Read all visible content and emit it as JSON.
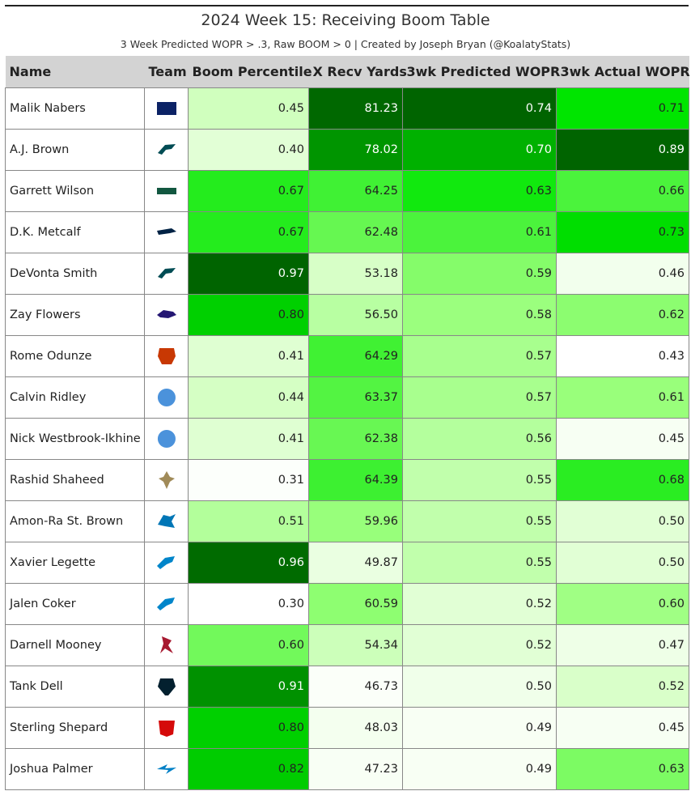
{
  "title": "2024 Week 15: Receiving Boom Table",
  "subtitle": "3 Week Predicted WOPR > .3, Raw BOOM > 0 | Created by Joseph Bryan (@KoalatyStats)",
  "columns": [
    "Name",
    "Team",
    "Boom Percentile",
    "X Recv Yards",
    "3wk Predicted WOPR",
    "3wk Actual WOPR"
  ],
  "rows": [
    {
      "name": "Malik Nabers",
      "team": "NYG",
      "boom": "0.45",
      "xyds": "81.23",
      "pred": "0.74",
      "actual": "0.71"
    },
    {
      "name": "A.J. Brown",
      "team": "PHI",
      "boom": "0.40",
      "xyds": "78.02",
      "pred": "0.70",
      "actual": "0.89"
    },
    {
      "name": "Garrett Wilson",
      "team": "NYJ",
      "boom": "0.67",
      "xyds": "64.25",
      "pred": "0.63",
      "actual": "0.66"
    },
    {
      "name": "D.K. Metcalf",
      "team": "SEA",
      "boom": "0.67",
      "xyds": "62.48",
      "pred": "0.61",
      "actual": "0.73"
    },
    {
      "name": "DeVonta Smith",
      "team": "PHI",
      "boom": "0.97",
      "xyds": "53.18",
      "pred": "0.59",
      "actual": "0.46"
    },
    {
      "name": "Zay Flowers",
      "team": "BAL",
      "boom": "0.80",
      "xyds": "56.50",
      "pred": "0.58",
      "actual": "0.62"
    },
    {
      "name": "Rome Odunze",
      "team": "CHI",
      "boom": "0.41",
      "xyds": "64.29",
      "pred": "0.57",
      "actual": "0.43"
    },
    {
      "name": "Calvin Ridley",
      "team": "TEN",
      "boom": "0.44",
      "xyds": "63.37",
      "pred": "0.57",
      "actual": "0.61"
    },
    {
      "name": "Nick Westbrook-Ikhine",
      "team": "TEN",
      "boom": "0.41",
      "xyds": "62.38",
      "pred": "0.56",
      "actual": "0.45"
    },
    {
      "name": "Rashid Shaheed",
      "team": "NO",
      "boom": "0.31",
      "xyds": "64.39",
      "pred": "0.55",
      "actual": "0.68"
    },
    {
      "name": "Amon-Ra St. Brown",
      "team": "DET",
      "boom": "0.51",
      "xyds": "59.96",
      "pred": "0.55",
      "actual": "0.50"
    },
    {
      "name": "Xavier Legette",
      "team": "CAR",
      "boom": "0.96",
      "xyds": "49.87",
      "pred": "0.55",
      "actual": "0.50"
    },
    {
      "name": "Jalen Coker",
      "team": "CAR",
      "boom": "0.30",
      "xyds": "60.59",
      "pred": "0.52",
      "actual": "0.60"
    },
    {
      "name": "Darnell Mooney",
      "team": "ATL",
      "boom": "0.60",
      "xyds": "54.34",
      "pred": "0.52",
      "actual": "0.47"
    },
    {
      "name": "Tank Dell",
      "team": "HOU",
      "boom": "0.91",
      "xyds": "46.73",
      "pred": "0.50",
      "actual": "0.52"
    },
    {
      "name": "Sterling Shepard",
      "team": "TB",
      "boom": "0.80",
      "xyds": "48.03",
      "pred": "0.49",
      "actual": "0.45"
    },
    {
      "name": "Joshua Palmer",
      "team": "LAC",
      "boom": "0.82",
      "xyds": "47.23",
      "pred": "0.49",
      "actual": "0.63"
    }
  ],
  "team_colors": {
    "NYG": "#0b2265",
    "PHI": "#004c54",
    "NYJ": "#125740",
    "SEA": "#002244",
    "BAL": "#241773",
    "CHI": "#c83803",
    "TEN": "#4b92db",
    "NO": "#a08a58",
    "DET": "#0076b6",
    "CAR": "#0085ca",
    "ATL": "#a71930",
    "HOU": "#03202f",
    "TB": "#d50a0a",
    "LAC": "#0080c6"
  },
  "team_icons": {
    "NYG": "ny-text-logo-icon",
    "PHI": "eagle-head-icon",
    "NYJ": "jets-text-logo-icon",
    "SEA": "seahawk-head-icon",
    "BAL": "raven-head-icon",
    "CHI": "bear-head-icon",
    "TEN": "titans-t-logo-icon",
    "NO": "fleur-de-lis-icon",
    "DET": "lion-icon",
    "CAR": "panther-head-icon",
    "ATL": "falcon-icon",
    "HOU": "texans-bull-icon",
    "TB": "pirate-flag-icon",
    "LAC": "lightning-bolt-icon"
  }
}
